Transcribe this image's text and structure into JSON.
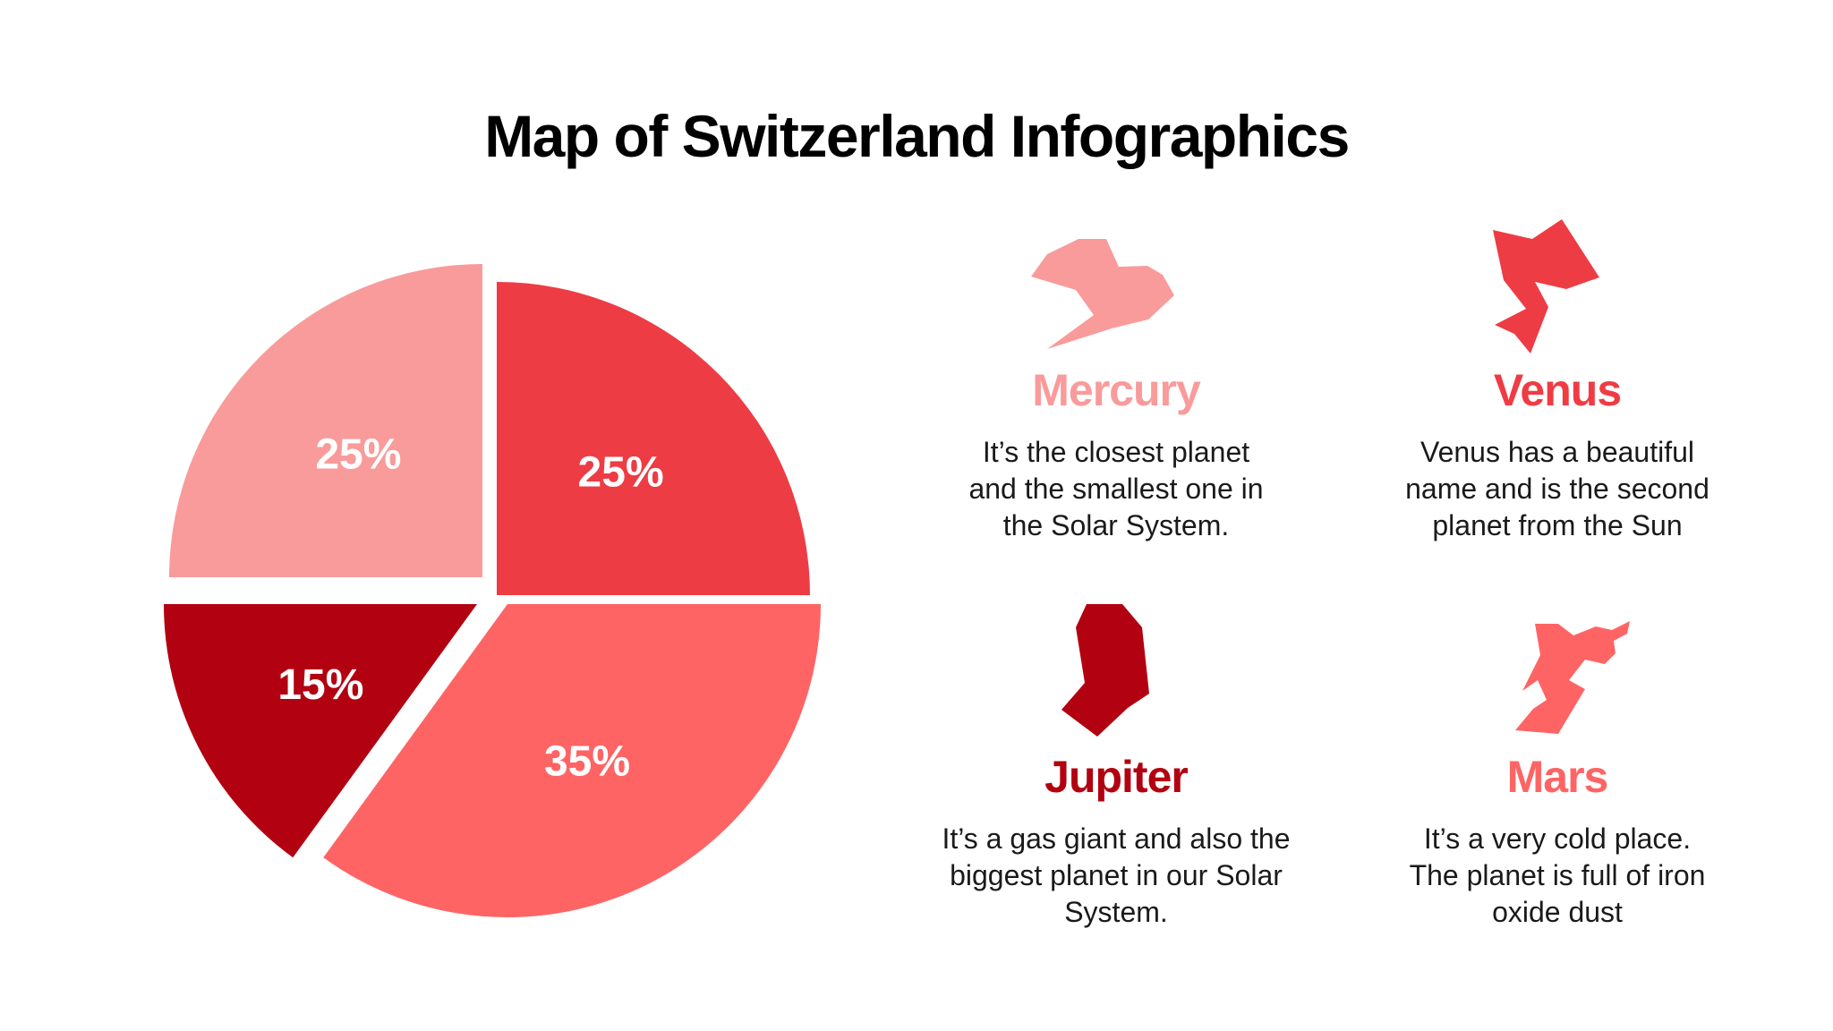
{
  "title": "Map of Switzerland Infographics",
  "colors": {
    "light_pink": "#F99B9B",
    "red": "#EE3C44",
    "dark_red": "#B20110",
    "coral": "#FF6464"
  },
  "chart_data": {
    "type": "pie",
    "slices": [
      {
        "label": "25%",
        "value": 25,
        "color": "#F99B9B"
      },
      {
        "label": "25%",
        "value": 25,
        "color": "#EE3C44"
      },
      {
        "label": "35%",
        "value": 35,
        "color": "#FF6464"
      },
      {
        "label": "15%",
        "value": 15,
        "color": "#B20110"
      }
    ]
  },
  "cards": [
    {
      "title": "Mercury",
      "description": "It’s the closest planet and the smallest one in the Solar System.",
      "color": "#F99B9B",
      "icon": "switzerland-region-map-icon"
    },
    {
      "title": "Venus",
      "description": "Venus has a beautiful name and is the second planet from the Sun",
      "color": "#EE3C44",
      "icon": "switzerland-region-map-icon"
    },
    {
      "title": "Jupiter",
      "description": "It’s a gas giant and also the biggest planet in our Solar System.",
      "color": "#B20110",
      "icon": "switzerland-region-map-icon"
    },
    {
      "title": "Mars",
      "description": "It’s a very cold place. The planet is full of iron oxide dust",
      "color": "#FF6464",
      "icon": "switzerland-region-map-icon"
    }
  ]
}
